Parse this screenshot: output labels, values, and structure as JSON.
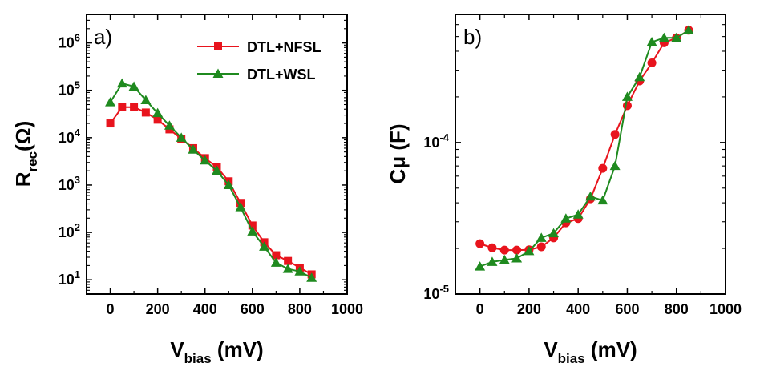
{
  "colors": {
    "red": "#e8141d",
    "green": "#1f8a1f",
    "axis": "#000000"
  },
  "chart_data": [
    {
      "panel": "a)",
      "type": "line",
      "title": "",
      "xlabel": {
        "main": "V",
        "sub": "bias",
        "rest": " (mV)"
      },
      "ylabel": {
        "main": "R",
        "sub": "rec",
        "rest": "(Ω)"
      },
      "xlim": [
        -100,
        1000
      ],
      "ylim": [
        5,
        4000000
      ],
      "yscale": "log",
      "xticks": [
        0,
        200,
        400,
        600,
        800,
        1000
      ],
      "xtick_labels": [
        "0",
        "200",
        "400",
        "600",
        "800",
        "1000"
      ],
      "yticks": [
        10,
        100,
        1000,
        10000,
        100000,
        1000000
      ],
      "ytick_labels": [
        {
          "base": "10",
          "exp": "1"
        },
        {
          "base": "10",
          "exp": "2"
        },
        {
          "base": "10",
          "exp": "3"
        },
        {
          "base": "10",
          "exp": "4"
        },
        {
          "base": "10",
          "exp": "5"
        },
        {
          "base": "10",
          "exp": "6"
        }
      ],
      "legend": {
        "placement": "top-right"
      },
      "series": [
        {
          "name": "DTL+NFSL",
          "color": "#e8141d",
          "marker": "square",
          "x": [
            0,
            50,
            100,
            150,
            200,
            250,
            300,
            350,
            400,
            450,
            500,
            550,
            600,
            650,
            700,
            750,
            800,
            850
          ],
          "y": [
            20000,
            44000,
            44000,
            34000,
            24000,
            15000,
            9500,
            6000,
            3700,
            2400,
            1200,
            420,
            140,
            62,
            33,
            25,
            18,
            13
          ]
        },
        {
          "name": "DTL+WSL",
          "color": "#1f8a1f",
          "marker": "triangle",
          "x": [
            0,
            50,
            100,
            150,
            200,
            250,
            300,
            350,
            400,
            450,
            500,
            550,
            600,
            650,
            700,
            750,
            800,
            850
          ],
          "y": [
            56000,
            140000,
            120000,
            62000,
            33000,
            18000,
            10000,
            5600,
            3300,
            2000,
            1000,
            340,
            105,
            50,
            23,
            17,
            15,
            11
          ]
        }
      ]
    },
    {
      "panel": "b)",
      "type": "line",
      "title": "",
      "xlabel": {
        "main": "V",
        "sub": "bias",
        "rest": " (mV)"
      },
      "ylabel": {
        "main": "Cμ (F)",
        "sub": "",
        "rest": ""
      },
      "xlim": [
        -100,
        1000
      ],
      "ylim": [
        1e-05,
        0.0007
      ],
      "yscale": "log",
      "xticks": [
        0,
        200,
        400,
        600,
        800,
        1000
      ],
      "xtick_labels": [
        "0",
        "200",
        "400",
        "600",
        "800",
        "1000"
      ],
      "yticks": [
        1e-05,
        0.0001
      ],
      "ytick_labels": [
        {
          "base": "10",
          "exp": "-5"
        },
        {
          "base": "10",
          "exp": "-4"
        }
      ],
      "series": [
        {
          "color": "#e8141d",
          "marker": "circle",
          "x": [
            0,
            50,
            100,
            150,
            200,
            250,
            300,
            350,
            400,
            450,
            500,
            550,
            600,
            650,
            700,
            750,
            800,
            850
          ],
          "y": [
            2.15e-05,
            2.02e-05,
            1.95e-05,
            1.95e-05,
            1.96e-05,
            2.05e-05,
            2.35e-05,
            2.95e-05,
            3.15e-05,
            4.25e-05,
            6.75e-05,
            0.000113,
            0.000175,
            0.000255,
            0.000335,
            0.000455,
            0.00049,
            0.00055
          ]
        },
        {
          "color": "#1f8a1f",
          "marker": "triangle",
          "x": [
            0,
            50,
            100,
            150,
            200,
            250,
            300,
            350,
            400,
            450,
            500,
            550,
            600,
            650,
            700,
            750,
            800,
            850
          ],
          "y": [
            1.52e-05,
            1.63e-05,
            1.68e-05,
            1.72e-05,
            1.92e-05,
            2.35e-05,
            2.52e-05,
            3.15e-05,
            3.35e-05,
            4.4e-05,
            4.15e-05,
            7e-05,
            0.0002,
            0.00027,
            0.00046,
            0.00049,
            0.00049,
            0.00055
          ]
        }
      ]
    }
  ]
}
